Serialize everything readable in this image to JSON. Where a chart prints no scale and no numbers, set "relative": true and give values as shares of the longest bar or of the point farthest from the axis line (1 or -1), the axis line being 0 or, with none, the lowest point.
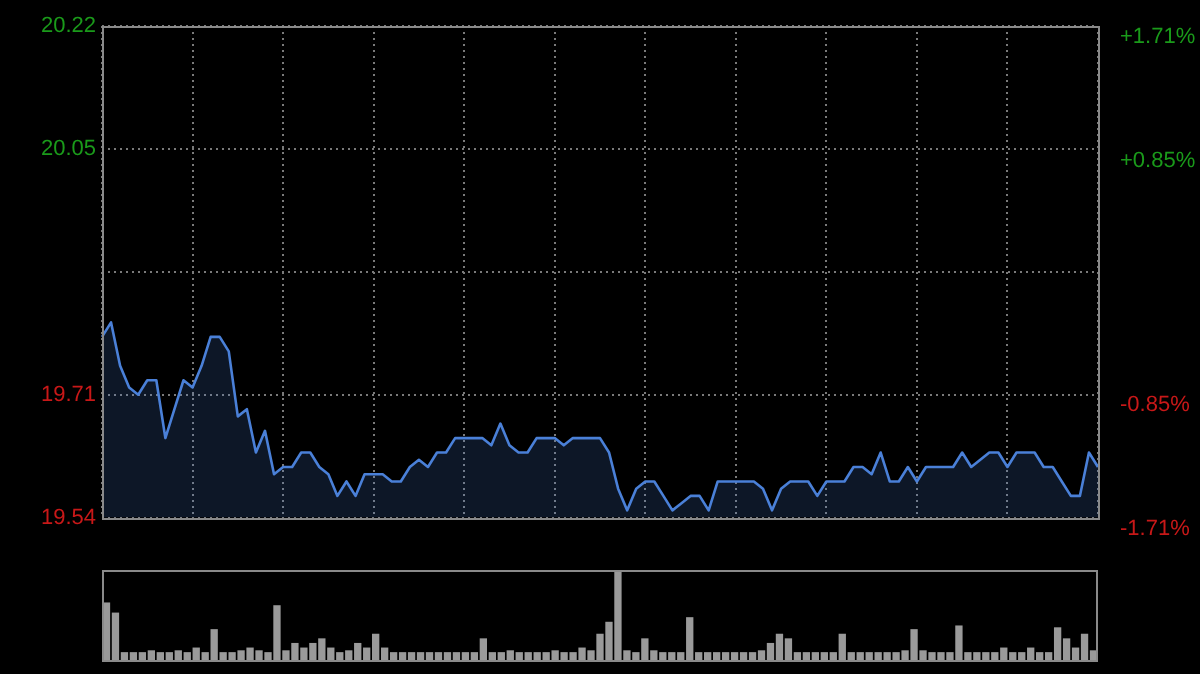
{
  "chart_data": [
    {
      "type": "area",
      "categories": [
        null,
        null,
        null,
        null,
        null,
        null,
        null,
        null,
        null,
        null,
        null,
        null,
        null,
        null,
        null,
        null,
        null,
        null,
        null,
        null,
        null,
        null,
        null,
        null,
        null,
        null,
        null,
        null,
        null,
        null,
        null,
        null,
        null,
        null,
        null,
        null,
        null,
        null,
        null,
        null,
        null,
        null,
        null,
        null,
        null,
        null,
        null,
        null,
        null,
        null,
        null,
        null,
        null,
        null,
        null,
        null,
        null,
        null,
        null,
        null,
        null,
        null,
        null,
        null,
        null,
        null,
        null,
        null,
        null,
        null,
        null,
        null,
        null,
        null,
        null,
        null,
        null,
        null,
        null,
        null,
        null,
        null,
        null,
        null,
        null,
        null,
        null,
        null,
        null,
        null,
        null,
        null,
        null,
        null,
        null,
        null,
        null,
        null,
        null,
        null,
        null,
        null,
        null,
        null,
        null,
        null,
        null,
        null,
        null,
        null,
        null
      ],
      "series": [
        {
          "color": "#4a80d8",
          "values": [
            19.79,
            19.81,
            19.75,
            19.72,
            19.71,
            19.73,
            19.73,
            19.65,
            19.69,
            19.73,
            19.72,
            19.75,
            19.79,
            19.79,
            19.77,
            19.68,
            19.69,
            19.63,
            19.66,
            19.6,
            19.61,
            19.61,
            19.63,
            19.63,
            19.61,
            19.6,
            19.57,
            19.59,
            19.57,
            19.6,
            19.6,
            19.6,
            19.59,
            19.59,
            19.61,
            19.62,
            19.61,
            19.63,
            19.63,
            19.65,
            19.65,
            19.65,
            19.65,
            19.64,
            19.67,
            19.64,
            19.63,
            19.63,
            19.65,
            19.65,
            19.65,
            19.64,
            19.65,
            19.65,
            19.65,
            19.65,
            19.63,
            19.58,
            19.55,
            19.58,
            19.59,
            19.59,
            19.57,
            19.55,
            19.56,
            19.57,
            19.57,
            19.55,
            19.59,
            19.59,
            19.59,
            19.59,
            19.59,
            19.58,
            19.55,
            19.58,
            19.59,
            19.59,
            19.59,
            19.57,
            19.59,
            19.59,
            19.59,
            19.61,
            19.61,
            19.6,
            19.63,
            19.59,
            19.59,
            19.61,
            19.59,
            19.61,
            19.61,
            19.61,
            19.61,
            19.63,
            19.61,
            19.62,
            19.63,
            19.63,
            19.61,
            19.63,
            19.63,
            19.63,
            19.61,
            19.61,
            19.59,
            19.57,
            19.57,
            19.63,
            19.61
          ]
        }
      ],
      "ylim": [
        19.54,
        20.22
      ],
      "yticks": [
        19.54,
        19.71,
        {
          "value": 19.88,
          "label": null
        },
        20.05,
        20.22
      ],
      "y2lim": [
        -1.71,
        1.71
      ],
      "y2ticks": [
        {
          "value": -1.71,
          "label": "-1.71%"
        },
        {
          "value": -0.85,
          "label": "-0.85%"
        },
        {
          "value": 0,
          "label": null
        },
        {
          "value": 0.85,
          "label": "+0.85%"
        },
        {
          "value": 1.71,
          "label": "+1.71%"
        }
      ],
      "grid": true,
      "legend": false
    },
    {
      "type": "bar",
      "relative": true,
      "categories": [
        null,
        null,
        null,
        null,
        null,
        null,
        null,
        null,
        null,
        null,
        null,
        null,
        null,
        null,
        null,
        null,
        null,
        null,
        null,
        null,
        null,
        null,
        null,
        null,
        null,
        null,
        null,
        null,
        null,
        null,
        null,
        null,
        null,
        null,
        null,
        null,
        null,
        null,
        null,
        null,
        null,
        null,
        null,
        null,
        null,
        null,
        null,
        null,
        null,
        null,
        null,
        null,
        null,
        null,
        null,
        null,
        null,
        null,
        null,
        null,
        null,
        null,
        null,
        null,
        null,
        null,
        null,
        null,
        null,
        null,
        null,
        null,
        null,
        null,
        null,
        null,
        null,
        null,
        null,
        null,
        null,
        null,
        null,
        null,
        null,
        null,
        null,
        null,
        null,
        null,
        null,
        null,
        null,
        null,
        null,
        null,
        null,
        null,
        null,
        null,
        null,
        null,
        null,
        null,
        null,
        null,
        null,
        null,
        null,
        null,
        null
      ],
      "series": [
        {
          "color": "#9a9a9a",
          "values": [
            0.64,
            0.53,
            0.1,
            0.1,
            0.1,
            0.12,
            0.1,
            0.1,
            0.12,
            0.1,
            0.15,
            0.1,
            0.35,
            0.1,
            0.1,
            0.12,
            0.15,
            0.12,
            0.1,
            0.61,
            0.12,
            0.2,
            0.15,
            0.2,
            0.25,
            0.15,
            0.1,
            0.12,
            0.2,
            0.15,
            0.3,
            0.15,
            0.1,
            0.1,
            0.1,
            0.1,
            0.1,
            0.1,
            0.1,
            0.1,
            0.1,
            0.1,
            0.25,
            0.1,
            0.1,
            0.12,
            0.1,
            0.1,
            0.1,
            0.1,
            0.12,
            0.1,
            0.1,
            0.15,
            0.12,
            0.3,
            0.43,
            1,
            0.12,
            0.1,
            0.25,
            0.12,
            0.1,
            0.1,
            0.1,
            0.48,
            0.1,
            0.1,
            0.1,
            0.1,
            0.1,
            0.1,
            0.1,
            0.12,
            0.2,
            0.3,
            0.25,
            0.1,
            0.1,
            0.1,
            0.1,
            0.1,
            0.3,
            0.1,
            0.1,
            0.1,
            0.1,
            0.1,
            0.1,
            0.12,
            0.35,
            0.12,
            0.1,
            0.1,
            0.1,
            0.39,
            0.1,
            0.1,
            0.1,
            0.1,
            0.15,
            0.1,
            0.1,
            0.15,
            0.1,
            0.1,
            0.37,
            0.25,
            0.15,
            0.3,
            0.12
          ]
        }
      ],
      "legend": false
    }
  ]
}
